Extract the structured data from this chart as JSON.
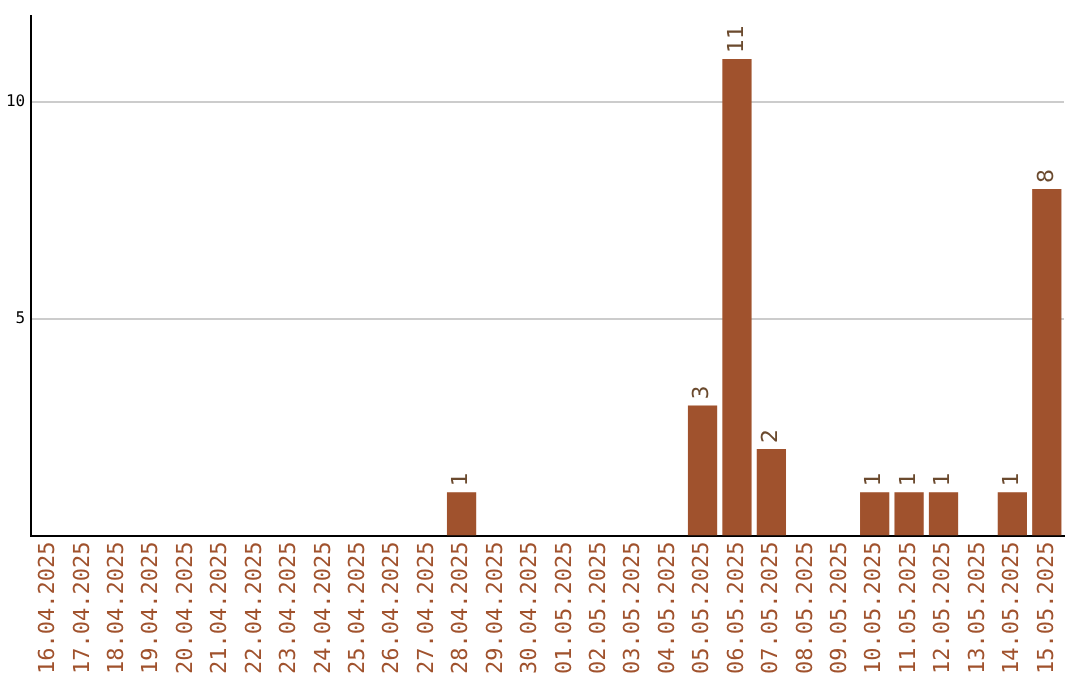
{
  "chart_data": {
    "type": "bar",
    "categories": [
      "16.04.2025",
      "17.04.2025",
      "18.04.2025",
      "19.04.2025",
      "20.04.2025",
      "21.04.2025",
      "22.04.2025",
      "23.04.2025",
      "24.04.2025",
      "25.04.2025",
      "26.04.2025",
      "27.04.2025",
      "28.04.2025",
      "29.04.2025",
      "30.04.2025",
      "01.05.2025",
      "02.05.2025",
      "03.05.2025",
      "04.05.2025",
      "05.05.2025",
      "06.05.2025",
      "07.05.2025",
      "08.05.2025",
      "09.05.2025",
      "10.05.2025",
      "11.05.2025",
      "12.05.2025",
      "13.05.2025",
      "14.05.2025",
      "15.05.2025"
    ],
    "values": [
      0,
      0,
      0,
      0,
      0,
      0,
      0,
      0,
      0,
      0,
      0,
      0,
      1,
      0,
      0,
      0,
      0,
      0,
      0,
      3,
      11,
      2,
      0,
      0,
      1,
      1,
      1,
      0,
      1,
      8
    ],
    "value_labels": [
      null,
      null,
      null,
      null,
      null,
      null,
      null,
      null,
      null,
      null,
      null,
      null,
      "1",
      null,
      null,
      null,
      null,
      null,
      null,
      "3",
      "11",
      "2",
      null,
      null,
      "1",
      "1",
      "1",
      null,
      "1",
      "8"
    ],
    "color": "#a0522d",
    "ylim": [
      0,
      12
    ],
    "yticks": [
      5,
      10
    ],
    "grid": "y",
    "legend": false
  }
}
